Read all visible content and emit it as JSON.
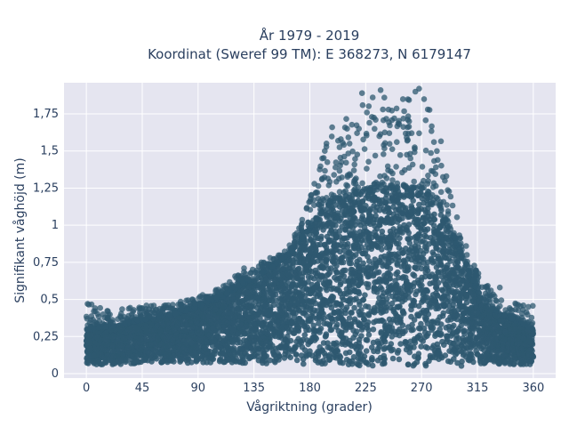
{
  "chart_data": {
    "type": "scatter",
    "title_lines": [
      "År 1979 - 2019",
      "Koordinat (Sweref 99 TM): E 368273, N 6179147"
    ],
    "xlabel": "Vågriktning (grader)",
    "ylabel": "Signifikant våghöjd (m)",
    "xlim": [
      -18,
      378
    ],
    "ylim": [
      -0.03,
      1.96
    ],
    "x_ticks": [
      0,
      45,
      90,
      135,
      180,
      225,
      270,
      315,
      360
    ],
    "x_tick_labels": [
      "0",
      "45",
      "90",
      "135",
      "180",
      "225",
      "270",
      "315",
      "360"
    ],
    "y_ticks": [
      0,
      0.25,
      0.5,
      0.75,
      1,
      1.25,
      1.5,
      1.75
    ],
    "y_tick_labels": [
      "0",
      "0,25",
      "0,5",
      "0,75",
      "1",
      "1,25",
      "1,5",
      "1,75"
    ],
    "grid": true,
    "legend": "none",
    "marker_color": "#2e5870",
    "plot_background": "#e5e5f0",
    "envelope": {
      "x": [
        0,
        20,
        45,
        70,
        90,
        110,
        130,
        150,
        165,
        180,
        195,
        210,
        225,
        240,
        255,
        270,
        285,
        300,
        315,
        330,
        345,
        360
      ],
      "y_min": [
        0.06,
        0.06,
        0.07,
        0.07,
        0.07,
        0.07,
        0.07,
        0.06,
        0.06,
        0.06,
        0.05,
        0.05,
        0.05,
        0.05,
        0.05,
        0.05,
        0.05,
        0.05,
        0.06,
        0.06,
        0.06,
        0.06
      ],
      "y_max_dense": [
        0.3,
        0.32,
        0.36,
        0.4,
        0.45,
        0.52,
        0.62,
        0.72,
        0.82,
        0.98,
        1.15,
        1.2,
        1.22,
        1.25,
        1.25,
        1.25,
        1.12,
        0.85,
        0.55,
        0.42,
        0.36,
        0.3
      ],
      "y_max_sparse": [
        0.48,
        0.43,
        0.46,
        0.47,
        0.52,
        0.6,
        0.72,
        0.77,
        0.88,
        1.2,
        1.6,
        1.75,
        1.92,
        1.95,
        1.85,
        1.93,
        1.6,
        1.0,
        0.7,
        0.52,
        0.48,
        0.46
      ]
    },
    "outliers": [
      [
        210,
        1.65
      ],
      [
        212,
        1.55
      ],
      [
        222,
        1.89
      ],
      [
        226,
        1.76
      ],
      [
        230,
        1.73
      ],
      [
        233,
        1.71
      ],
      [
        237,
        1.91
      ],
      [
        240,
        1.86
      ],
      [
        244,
        1.62
      ],
      [
        248,
        1.72
      ],
      [
        252,
        1.68
      ],
      [
        255,
        1.85
      ],
      [
        260,
        1.7
      ],
      [
        265,
        1.9
      ],
      [
        268,
        1.92
      ],
      [
        272,
        1.85
      ],
      [
        275,
        1.78
      ],
      [
        205,
        1.58
      ],
      [
        198,
        1.66
      ],
      [
        218,
        1.62
      ],
      [
        262,
        1.62
      ],
      [
        280,
        1.56
      ],
      [
        283,
        1.44
      ],
      [
        290,
        1.33
      ],
      [
        192,
        1.5
      ],
      [
        190,
        1.45
      ],
      [
        186,
        1.22
      ],
      [
        183,
        1.17
      ],
      [
        228,
        1.69
      ],
      [
        236,
        1.6
      ],
      [
        250,
        1.56
      ],
      [
        258,
        1.59
      ],
      [
        6,
        0.42
      ],
      [
        1,
        0.47
      ],
      [
        333,
        0.58
      ],
      [
        352,
        0.46
      ],
      [
        356,
        0.45
      ],
      [
        100,
        0.52
      ],
      [
        127,
        0.71
      ],
      [
        141,
        0.75
      ],
      [
        148,
        0.78
      ]
    ]
  }
}
